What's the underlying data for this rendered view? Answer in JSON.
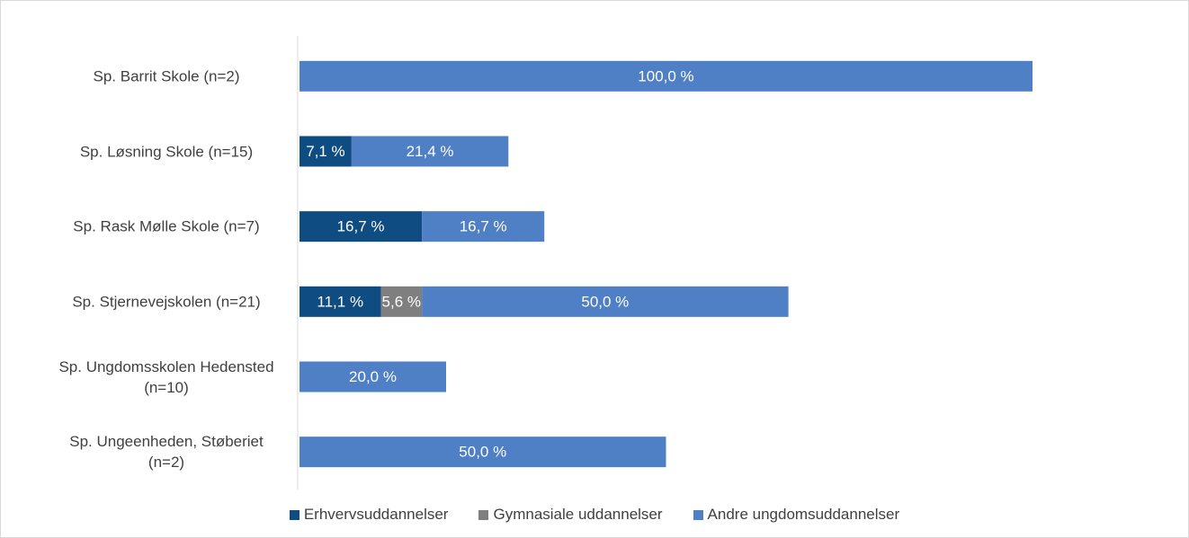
{
  "chart_data": {
    "type": "stacked_bar_horizontal",
    "categories": [
      "Sp. Barrit Skole (n=2)",
      "Sp. Løsning Skole (n=15)",
      "Sp. Rask Mølle Skole (n=7)",
      "Sp. Stjernevejskolen (n=21)",
      "Sp. Ungdomsskolen Hedensted (n=10)",
      "Sp. Ungeenheden, Støberiet (n=2)"
    ],
    "series": [
      {
        "name": "Erhvervsuddannelser",
        "color": "#0f4c81",
        "values": [
          null,
          7.1,
          16.7,
          11.1,
          null,
          null
        ],
        "value_labels": [
          null,
          "7,1 %",
          "16,7 %",
          "11,1 %",
          null,
          null
        ]
      },
      {
        "name": "Gymnasiale uddannelser",
        "color": "#7f7f7f",
        "values": [
          null,
          null,
          null,
          5.6,
          null,
          null
        ],
        "value_labels": [
          null,
          null,
          null,
          "5,6 %",
          null,
          null
        ]
      },
      {
        "name": "Andre ungdomsuddannelser",
        "color": "#4f7fc4",
        "values": [
          100,
          21.4,
          16.7,
          50,
          20,
          50
        ],
        "value_labels": [
          "100,0 %",
          "21,4 %",
          "16,7 %",
          "50,0 %",
          "20,0 %",
          "50,0 %"
        ]
      }
    ],
    "xlim": [
      0,
      100
    ],
    "legend": "bottom"
  }
}
